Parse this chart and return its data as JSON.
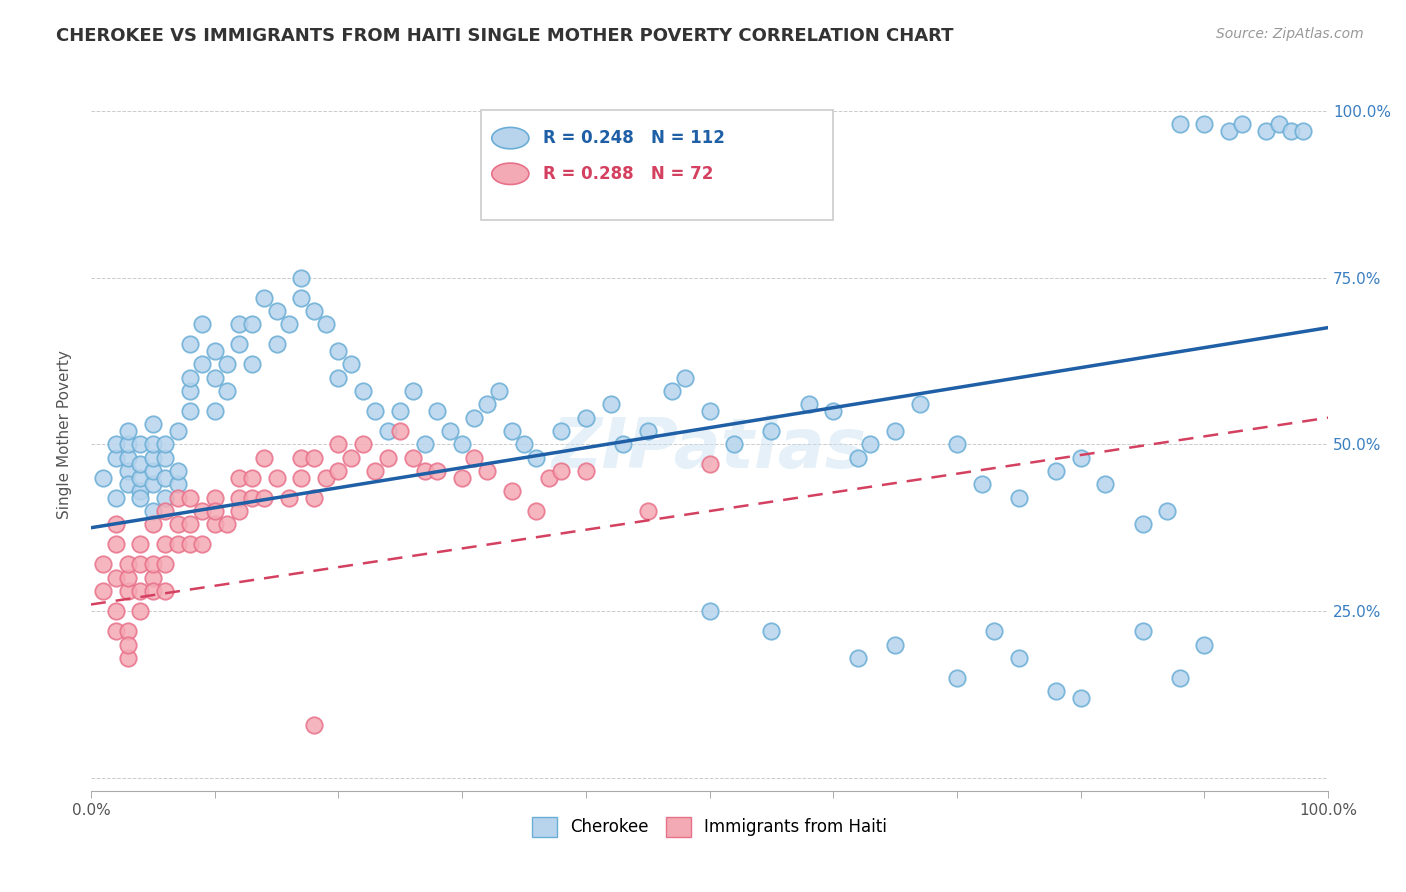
{
  "title": "CHEROKEE VS IMMIGRANTS FROM HAITI SINGLE MOTHER POVERTY CORRELATION CHART",
  "source": "Source: ZipAtlas.com",
  "ylabel": "Single Mother Poverty",
  "legend_label_1": "Cherokee",
  "legend_label_2": "Immigrants from Haiti",
  "watermark": "ZIPatlas",
  "r1": 0.248,
  "n1": 112,
  "r2": 0.288,
  "n2": 72,
  "blue_face_color": "#b8d4ed",
  "blue_edge_color": "#6aaed6",
  "pink_face_color": "#f4aab4",
  "pink_edge_color": "#e8718a",
  "blue_line_color": "#1f5fa6",
  "pink_line_color": "#d44060",
  "background_color": "#ffffff",
  "grid_color": "#cccccc",
  "ytick_color": "#3a7fc1",
  "blue_scatter_x": [
    0.01,
    0.02,
    0.02,
    0.02,
    0.03,
    0.03,
    0.03,
    0.03,
    0.03,
    0.04,
    0.04,
    0.04,
    0.04,
    0.04,
    0.05,
    0.05,
    0.05,
    0.05,
    0.05,
    0.05,
    0.06,
    0.06,
    0.06,
    0.06,
    0.07,
    0.07,
    0.07,
    0.08,
    0.08,
    0.08,
    0.08,
    0.09,
    0.09,
    0.1,
    0.1,
    0.1,
    0.11,
    0.11,
    0.12,
    0.12,
    0.13,
    0.13,
    0.14,
    0.15,
    0.15,
    0.16,
    0.17,
    0.17,
    0.18,
    0.19,
    0.2,
    0.2,
    0.21,
    0.22,
    0.23,
    0.24,
    0.25,
    0.26,
    0.27,
    0.28,
    0.29,
    0.3,
    0.31,
    0.32,
    0.33,
    0.34,
    0.35,
    0.36,
    0.38,
    0.4,
    0.42,
    0.43,
    0.45,
    0.47,
    0.48,
    0.5,
    0.52,
    0.55,
    0.58,
    0.6,
    0.62,
    0.63,
    0.65,
    0.67,
    0.7,
    0.72,
    0.75,
    0.78,
    0.8,
    0.82,
    0.85,
    0.87,
    0.88,
    0.9,
    0.92,
    0.93,
    0.95,
    0.96,
    0.97,
    0.98,
    0.5,
    0.55,
    0.62,
    0.65,
    0.7,
    0.73,
    0.75,
    0.78,
    0.8,
    0.85,
    0.88,
    0.9
  ],
  "blue_scatter_y": [
    0.45,
    0.48,
    0.42,
    0.5,
    0.46,
    0.44,
    0.48,
    0.5,
    0.52,
    0.43,
    0.45,
    0.47,
    0.5,
    0.42,
    0.44,
    0.46,
    0.48,
    0.5,
    0.53,
    0.4,
    0.42,
    0.45,
    0.48,
    0.5,
    0.44,
    0.46,
    0.52,
    0.55,
    0.58,
    0.6,
    0.65,
    0.62,
    0.68,
    0.55,
    0.6,
    0.64,
    0.58,
    0.62,
    0.65,
    0.68,
    0.62,
    0.68,
    0.72,
    0.65,
    0.7,
    0.68,
    0.72,
    0.75,
    0.7,
    0.68,
    0.6,
    0.64,
    0.62,
    0.58,
    0.55,
    0.52,
    0.55,
    0.58,
    0.5,
    0.55,
    0.52,
    0.5,
    0.54,
    0.56,
    0.58,
    0.52,
    0.5,
    0.48,
    0.52,
    0.54,
    0.56,
    0.5,
    0.52,
    0.58,
    0.6,
    0.55,
    0.5,
    0.52,
    0.56,
    0.55,
    0.48,
    0.5,
    0.52,
    0.56,
    0.5,
    0.44,
    0.42,
    0.46,
    0.48,
    0.44,
    0.38,
    0.4,
    0.98,
    0.98,
    0.97,
    0.98,
    0.97,
    0.98,
    0.97,
    0.97,
    0.25,
    0.22,
    0.18,
    0.2,
    0.15,
    0.22,
    0.18,
    0.13,
    0.12,
    0.22,
    0.15,
    0.2
  ],
  "pink_scatter_x": [
    0.01,
    0.01,
    0.02,
    0.02,
    0.02,
    0.02,
    0.02,
    0.03,
    0.03,
    0.03,
    0.03,
    0.03,
    0.03,
    0.04,
    0.04,
    0.04,
    0.04,
    0.05,
    0.05,
    0.05,
    0.05,
    0.06,
    0.06,
    0.06,
    0.06,
    0.07,
    0.07,
    0.07,
    0.08,
    0.08,
    0.08,
    0.09,
    0.09,
    0.1,
    0.1,
    0.1,
    0.11,
    0.12,
    0.12,
    0.12,
    0.13,
    0.13,
    0.14,
    0.14,
    0.15,
    0.16,
    0.17,
    0.17,
    0.18,
    0.18,
    0.19,
    0.2,
    0.2,
    0.21,
    0.22,
    0.23,
    0.24,
    0.25,
    0.26,
    0.27,
    0.28,
    0.3,
    0.31,
    0.32,
    0.34,
    0.36,
    0.37,
    0.38,
    0.4,
    0.45,
    0.5,
    0.18
  ],
  "pink_scatter_y": [
    0.32,
    0.28,
    0.3,
    0.25,
    0.22,
    0.35,
    0.38,
    0.28,
    0.3,
    0.32,
    0.22,
    0.18,
    0.2,
    0.25,
    0.28,
    0.32,
    0.35,
    0.3,
    0.32,
    0.28,
    0.38,
    0.32,
    0.28,
    0.35,
    0.4,
    0.35,
    0.38,
    0.42,
    0.38,
    0.35,
    0.42,
    0.4,
    0.35,
    0.38,
    0.42,
    0.4,
    0.38,
    0.42,
    0.45,
    0.4,
    0.42,
    0.45,
    0.42,
    0.48,
    0.45,
    0.42,
    0.48,
    0.45,
    0.48,
    0.42,
    0.45,
    0.5,
    0.46,
    0.48,
    0.5,
    0.46,
    0.48,
    0.52,
    0.48,
    0.46,
    0.46,
    0.45,
    0.48,
    0.46,
    0.43,
    0.4,
    0.45,
    0.46,
    0.46,
    0.4,
    0.47,
    0.08
  ]
}
